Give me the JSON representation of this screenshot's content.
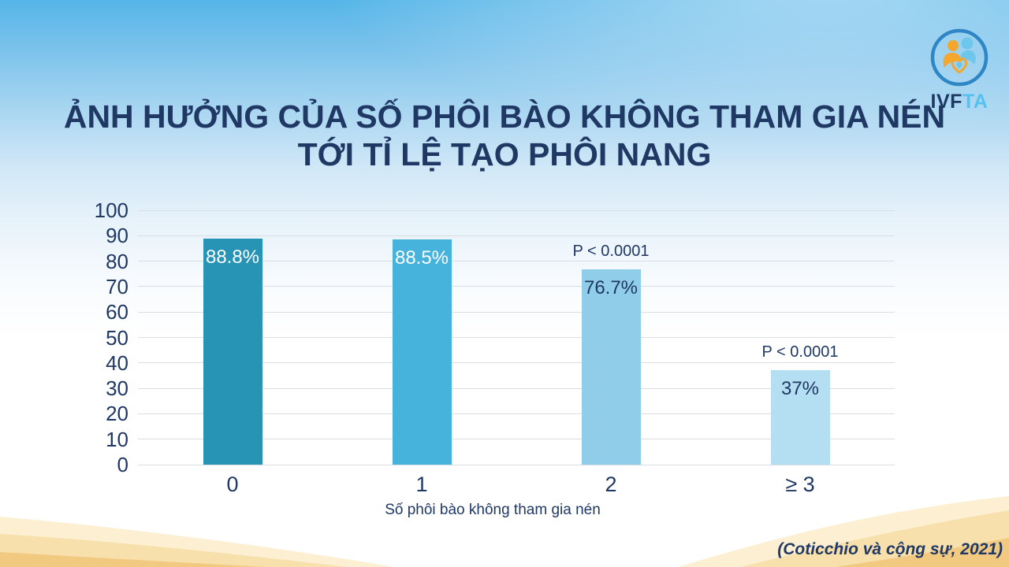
{
  "slide": {
    "title_line1": "ẢNH HƯỞNG CỦA SỐ PHÔI BÀO KHÔNG THAM GIA NÉN",
    "title_line2": "TỚI TỈ LỆ TẠO PHÔI NANG",
    "citation": "(Coticchio và cộng sự, 2021)",
    "logo": {
      "text_primary": "IVF",
      "text_secondary": "TA"
    }
  },
  "colors": {
    "title_text": "#1F3864",
    "grid_line": "#D9DEE6",
    "sky_top": "#55B5E8",
    "wave_light": "#FCEFD2",
    "wave_mid": "#F8E0AC",
    "wave_deep": "#F2C981"
  },
  "chart_data": {
    "type": "bar",
    "title": "",
    "xlabel": "Số phôi bào không tham gia nén",
    "ylabel": "",
    "ylim": [
      0,
      100
    ],
    "yticks": [
      0,
      10,
      20,
      30,
      40,
      50,
      60,
      70,
      80,
      90,
      100
    ],
    "grid": true,
    "legend": false,
    "categories": [
      "0",
      "1",
      "2",
      "≥ 3"
    ],
    "values": [
      88.8,
      88.5,
      76.7,
      37
    ],
    "bars": [
      {
        "category": "0",
        "value": 88.8,
        "label": "88.8%",
        "bar_color": "#2793B5",
        "label_color": "#FFFFFF",
        "annotation": ""
      },
      {
        "category": "1",
        "value": 88.5,
        "label": "88.5%",
        "bar_color": "#45B3DC",
        "label_color": "#FFFFFF",
        "annotation": ""
      },
      {
        "category": "2",
        "value": 76.7,
        "label": "76.7%",
        "bar_color": "#8FCDE8",
        "label_color": "#1F3864",
        "annotation": "P < 0.0001"
      },
      {
        "category": "≥ 3",
        "value": 37,
        "label": "37%",
        "bar_color": "#B4DFF2",
        "label_color": "#1F3864",
        "annotation": "P < 0.0001"
      }
    ]
  }
}
